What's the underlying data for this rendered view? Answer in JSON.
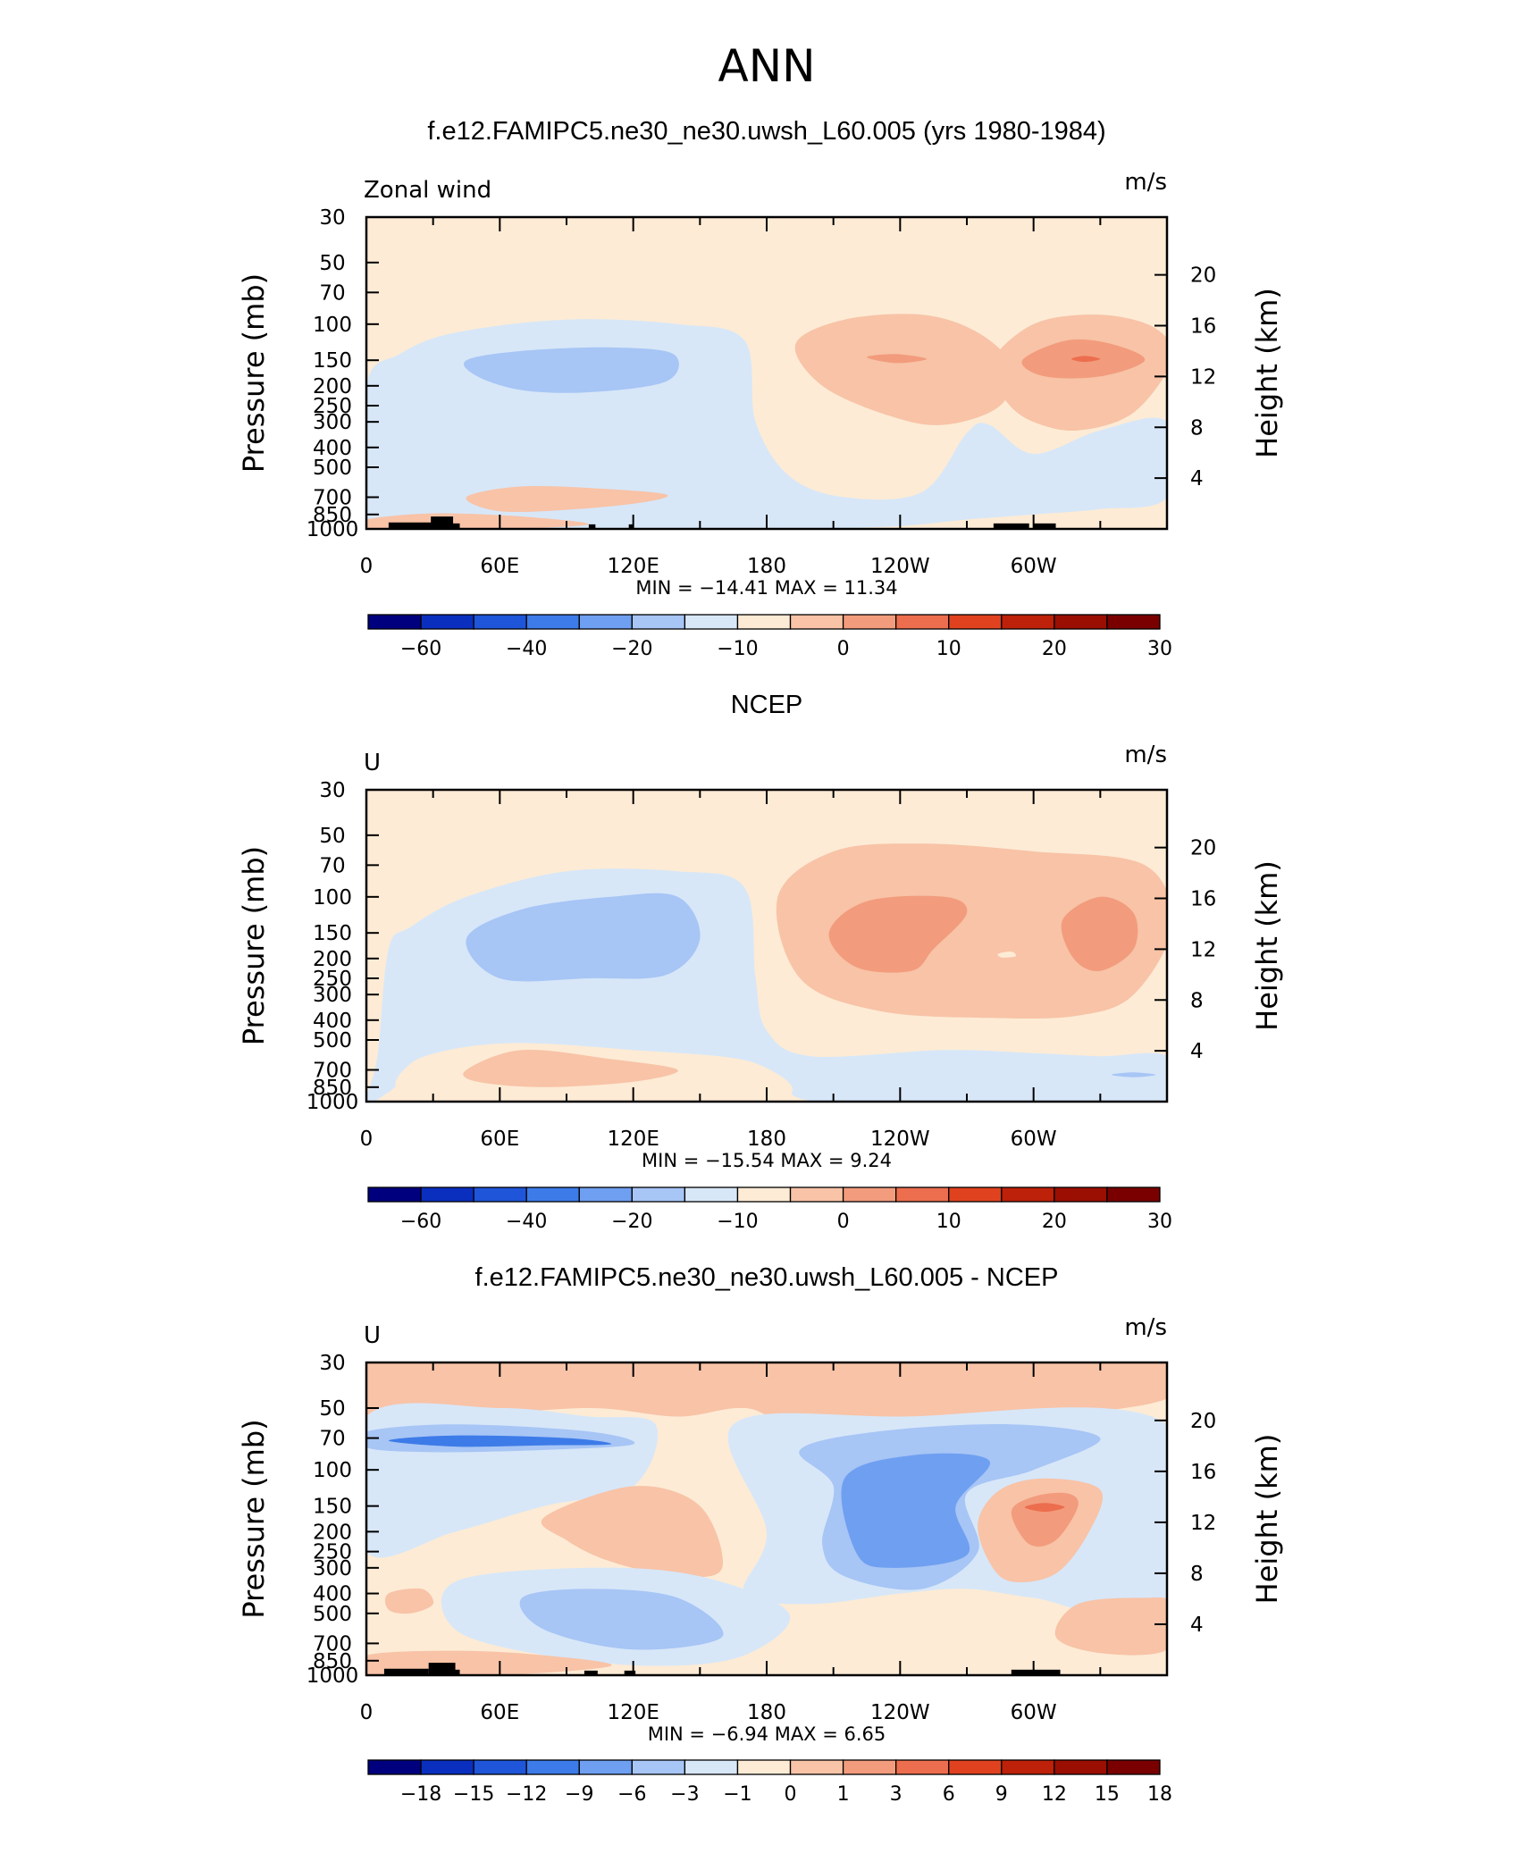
{
  "page": {
    "title": "ANN"
  },
  "chart_data": [
    {
      "type": "contour",
      "title": "f.e12.FAMIPC5.ne30_ne30.uwsh_L60.005 (yrs 1980-1984)",
      "left_label": "Zonal wind",
      "units": "m/s",
      "ylabel": "Pressure (mb)",
      "ylabel_right": "Height (km)",
      "x_ticks": [
        "0",
        "60E",
        "120E",
        "180",
        "120W",
        "60W"
      ],
      "y_ticks": [
        "30",
        "50",
        "70",
        "100",
        "150",
        "200",
        "250",
        "300",
        "400",
        "500",
        "700",
        "850",
        "1000"
      ],
      "height_ticks": [
        "20",
        "16",
        "12",
        "8",
        "4"
      ],
      "stats": "MIN = -14.41   MAX =  11.34",
      "colorbar": {
        "labels": [
          "-60",
          "-40",
          "-20",
          "-10",
          "0",
          "10",
          "20",
          "30"
        ],
        "colors": [
          "#00007f",
          "#0a2fbf",
          "#1f55d8",
          "#3d7be8",
          "#6f9ff0",
          "#a7c5f5",
          "#d7e7f8",
          "#fdebd5",
          "#f8c3a7",
          "#f29c7d",
          "#ec6e4e",
          "#e0421f",
          "#bd2109",
          "#9b0e02",
          "#7a0000"
        ]
      },
      "contour_levels_ms": [
        -10,
        -5,
        0,
        5,
        10
      ],
      "features": [
        "easterly band ~150-200 mb 30E-120E",
        "westerly maxima ~150 mb near 115W and 40W, max 11.34 m/s",
        "easterlies near surface east of 180"
      ]
    },
    {
      "type": "contour",
      "title": "NCEP",
      "left_label": "U",
      "units": "m/s",
      "ylabel": "Pressure (mb)",
      "ylabel_right": "Height (km)",
      "x_ticks": [
        "0",
        "60E",
        "120E",
        "180",
        "120W",
        "60W"
      ],
      "y_ticks": [
        "30",
        "50",
        "70",
        "100",
        "150",
        "200",
        "250",
        "300",
        "400",
        "500",
        "700",
        "850",
        "1000"
      ],
      "height_ticks": [
        "20",
        "16",
        "12",
        "8",
        "4"
      ],
      "stats": "MIN = -15.54   MAX =   9.24",
      "colorbar": {
        "labels": [
          "-60",
          "-40",
          "-20",
          "-10",
          "0",
          "10",
          "20",
          "30"
        ],
        "colors": [
          "#00007f",
          "#0a2fbf",
          "#1f55d8",
          "#3d7be8",
          "#6f9ff0",
          "#a7c5f5",
          "#d7e7f8",
          "#fdebd5",
          "#f8c3a7",
          "#f29c7d",
          "#ec6e4e",
          "#e0421f",
          "#bd2109",
          "#9b0e02",
          "#7a0000"
        ]
      },
      "contour_levels_ms": [
        -10,
        -5,
        0,
        5,
        10
      ],
      "features": [
        "easterly band ~150 mb 50E-150E",
        "broad westerly maxima 100-200 mb at 110W and 40W"
      ]
    },
    {
      "type": "contour",
      "title": "f.e12.FAMIPC5.ne30_ne30.uwsh_L60.005 - NCEP",
      "left_label": "U",
      "units": "m/s",
      "ylabel": "Pressure (mb)",
      "ylabel_right": "Height (km)",
      "x_ticks": [
        "0",
        "60E",
        "120E",
        "180",
        "120W",
        "60W"
      ],
      "y_ticks": [
        "30",
        "50",
        "70",
        "100",
        "150",
        "200",
        "250",
        "300",
        "400",
        "500",
        "700",
        "850",
        "1000"
      ],
      "height_ticks": [
        "20",
        "16",
        "12",
        "8",
        "4"
      ],
      "stats": "MIN =   -6.94   MAX =    6.65",
      "colorbar": {
        "labels": [
          "-18",
          "-15",
          "-12",
          "-9",
          "-6",
          "-3",
          "-1",
          "0",
          "1",
          "3",
          "6",
          "9",
          "12",
          "15",
          "18"
        ],
        "colors": [
          "#00007f",
          "#0a2fbf",
          "#1f55d8",
          "#3d7be8",
          "#6f9ff0",
          "#a7c5f5",
          "#d7e7f8",
          "#fdebd5",
          "#f8c3a7",
          "#f29c7d",
          "#ec6e4e",
          "#e0421f",
          "#bd2109",
          "#9b0e02",
          "#7a0000"
        ]
      },
      "contour_levels_ms": [
        -6,
        -3,
        -1,
        0,
        1,
        3,
        6
      ],
      "features": [
        "negative differences 70-300 mb 160W-80W",
        "positive difference max ~150 mb near 55W",
        "negative band ~70 mb 0-80E"
      ]
    }
  ]
}
